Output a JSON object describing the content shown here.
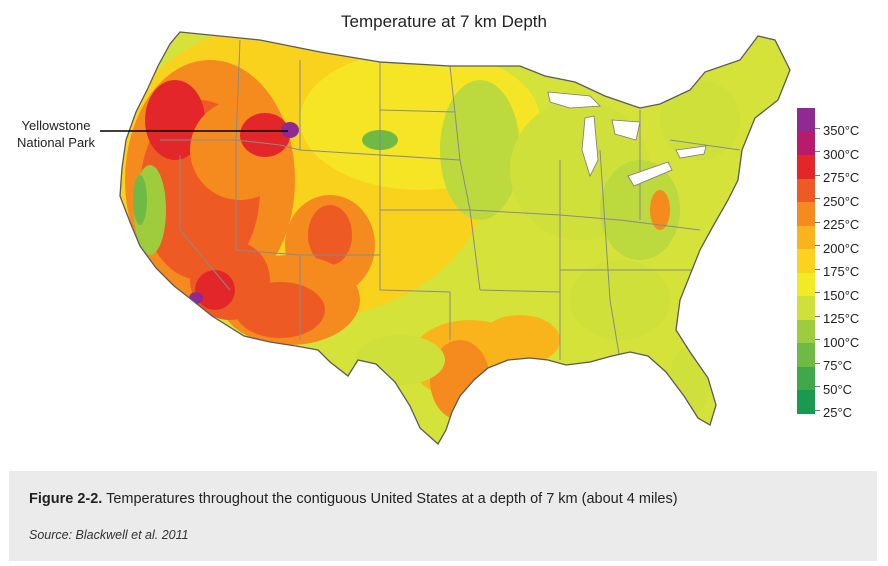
{
  "map": {
    "title": "Temperature at 7 km Depth",
    "annotation": {
      "label_line1": "Yellowstone",
      "label_line2": "National Park"
    },
    "region": "contiguous United States"
  },
  "legend": {
    "items": [
      {
        "label": "350°C",
        "color": "#8e2a91"
      },
      {
        "label": "300°C",
        "color": "#b81b6d"
      },
      {
        "label": "275°C",
        "color": "#e3262a"
      },
      {
        "label": "250°C",
        "color": "#ee5a24"
      },
      {
        "label": "225°C",
        "color": "#f58a1f"
      },
      {
        "label": "200°C",
        "color": "#f9b41b"
      },
      {
        "label": "175°C",
        "color": "#fbd21d"
      },
      {
        "label": "150°C",
        "color": "#f2ea22"
      },
      {
        "label": "125°C",
        "color": "#cfe03a"
      },
      {
        "label": "100°C",
        "color": "#9fcc3d"
      },
      {
        "label": "75°C",
        "color": "#6fba45"
      },
      {
        "label": "50°C",
        "color": "#3ea84a"
      },
      {
        "label": "25°C",
        "color": "#1a9a50"
      }
    ]
  },
  "caption": {
    "figure_label": "Figure 2-2.",
    "text": " Temperatures throughout the contiguous United States at a depth of 7 km (about 4 miles)",
    "source": "Source: Blackwell et al. 2011"
  }
}
